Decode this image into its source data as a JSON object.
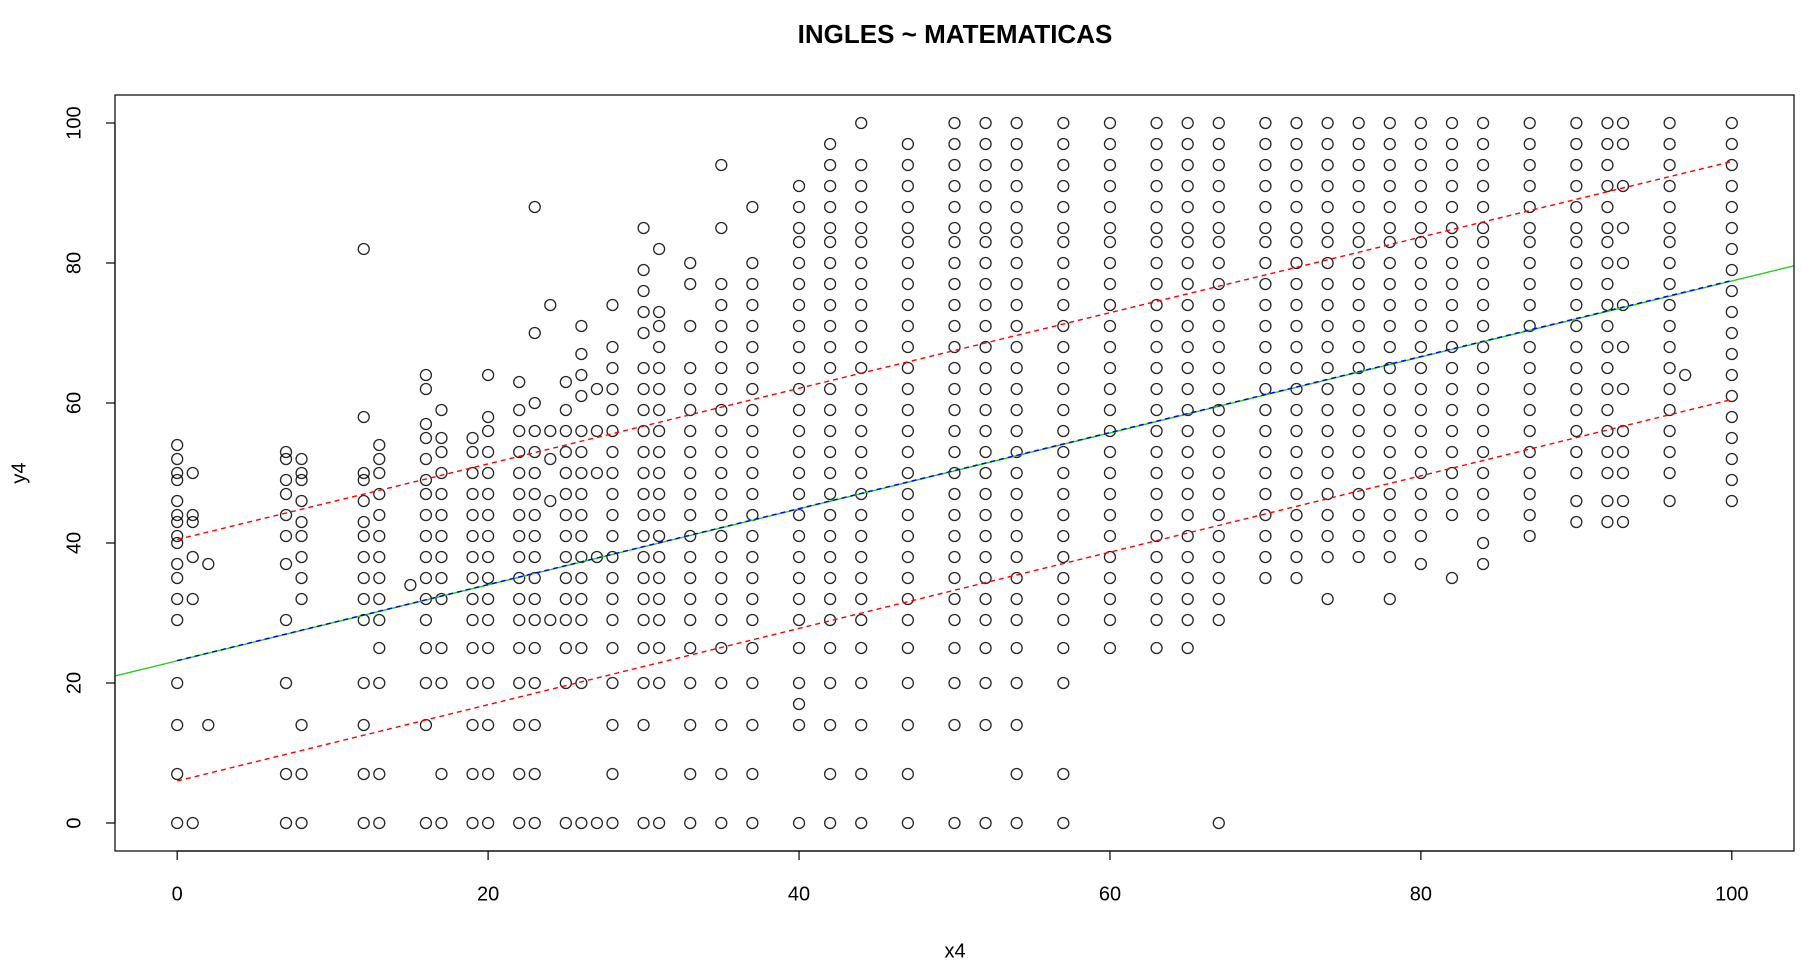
{
  "chart_data": {
    "type": "scatter",
    "title": "INGLES ~ MATEMATICAS",
    "x_label": "x4",
    "y_label": "y4",
    "xlim": [
      -4,
      104
    ],
    "ylim": [
      -4,
      104
    ],
    "xticks": [
      0,
      20,
      40,
      60,
      80,
      100
    ],
    "yticks": [
      0,
      20,
      40,
      60,
      80,
      100
    ],
    "point_color": "#000000",
    "points": [
      {
        "x": 0,
        "y": [
          0,
          7,
          14,
          20,
          29,
          32,
          35,
          37,
          40,
          41,
          43,
          44,
          46,
          49,
          50,
          52,
          54
        ]
      },
      {
        "x": 1,
        "y": [
          0,
          32,
          38,
          43,
          44,
          50
        ]
      },
      {
        "x": 2,
        "y": [
          14,
          37
        ]
      },
      {
        "x": 7,
        "y": [
          0,
          7,
          20,
          29,
          37,
          41,
          44,
          47,
          49,
          52,
          53
        ]
      },
      {
        "x": 8,
        "y": [
          0,
          7,
          14,
          32,
          35,
          38,
          41,
          43,
          46,
          49,
          50,
          52
        ]
      },
      {
        "x": 12,
        "y": [
          0,
          7,
          14,
          20,
          29,
          32,
          35,
          38,
          41,
          43,
          46,
          49,
          50,
          58,
          82
        ]
      },
      {
        "x": 13,
        "y": [
          0,
          7,
          20,
          25,
          29,
          32,
          35,
          38,
          41,
          44,
          47,
          50,
          52,
          54
        ]
      },
      {
        "x": 15,
        "y": [
          34
        ]
      },
      {
        "x": 16,
        "y": [
          0,
          14,
          20,
          25,
          29,
          32,
          35,
          38,
          41,
          44,
          47,
          49,
          52,
          55,
          57,
          62,
          64
        ]
      },
      {
        "x": 17,
        "y": [
          0,
          7,
          20,
          25,
          32,
          35,
          38,
          41,
          44,
          47,
          50,
          53,
          55,
          59
        ]
      },
      {
        "x": 19,
        "y": [
          0,
          7,
          14,
          20,
          25,
          29,
          32,
          35,
          38,
          41,
          44,
          47,
          50,
          53,
          55
        ]
      },
      {
        "x": 20,
        "y": [
          0,
          7,
          14,
          20,
          25,
          29,
          32,
          35,
          38,
          41,
          44,
          47,
          50,
          53,
          56,
          58,
          64
        ]
      },
      {
        "x": 22,
        "y": [
          0,
          7,
          14,
          20,
          25,
          29,
          32,
          35,
          38,
          41,
          44,
          47,
          50,
          53,
          56,
          59,
          63
        ]
      },
      {
        "x": 23,
        "y": [
          0,
          7,
          14,
          20,
          25,
          29,
          32,
          35,
          38,
          41,
          44,
          47,
          50,
          53,
          56,
          60,
          70,
          88
        ]
      },
      {
        "x": 24,
        "y": [
          29,
          46,
          52,
          56,
          74
        ]
      },
      {
        "x": 25,
        "y": [
          0,
          20,
          25,
          29,
          32,
          35,
          38,
          41,
          44,
          47,
          50,
          53,
          56,
          59,
          63
        ]
      },
      {
        "x": 26,
        "y": [
          0,
          20,
          25,
          29,
          32,
          35,
          38,
          41,
          44,
          47,
          50,
          53,
          56,
          61,
          64,
          67,
          71
        ]
      },
      {
        "x": 27,
        "y": [
          0,
          38,
          50,
          56,
          62
        ]
      },
      {
        "x": 28,
        "y": [
          0,
          7,
          14,
          20,
          25,
          29,
          32,
          35,
          38,
          41,
          44,
          47,
          50,
          53,
          56,
          59,
          62,
          65,
          68,
          74
        ]
      },
      {
        "x": 30,
        "y": [
          0,
          14,
          20,
          25,
          29,
          32,
          35,
          38,
          41,
          44,
          47,
          50,
          53,
          56,
          59,
          62,
          65,
          70,
          73,
          76,
          79,
          85
        ]
      },
      {
        "x": 31,
        "y": [
          0,
          20,
          25,
          29,
          32,
          35,
          38,
          41,
          44,
          47,
          50,
          53,
          56,
          59,
          62,
          65,
          68,
          71,
          73,
          82
        ]
      },
      {
        "x": 33,
        "y": [
          0,
          7,
          14,
          20,
          25,
          29,
          32,
          35,
          38,
          41,
          44,
          47,
          50,
          53,
          56,
          59,
          62,
          65,
          71,
          77,
          80
        ]
      },
      {
        "x": 35,
        "y": [
          0,
          7,
          14,
          20,
          25,
          29,
          32,
          35,
          38,
          41,
          44,
          47,
          50,
          53,
          56,
          59,
          62,
          65,
          68,
          71,
          74,
          77,
          85,
          94
        ]
      },
      {
        "x": 37,
        "y": [
          0,
          7,
          14,
          20,
          25,
          29,
          32,
          35,
          38,
          41,
          44,
          47,
          50,
          53,
          56,
          59,
          62,
          65,
          68,
          71,
          74,
          77,
          80,
          88
        ]
      },
      {
        "x": 40,
        "y": [
          0,
          14,
          17,
          20,
          25,
          29,
          32,
          35,
          38,
          41,
          44,
          47,
          50,
          53,
          56,
          59,
          62,
          65,
          68,
          71,
          74,
          77,
          80,
          83,
          85,
          88,
          91
        ]
      },
      {
        "x": 42,
        "y": [
          0,
          7,
          14,
          20,
          25,
          29,
          32,
          35,
          38,
          41,
          44,
          47,
          50,
          53,
          56,
          59,
          62,
          65,
          68,
          71,
          74,
          77,
          80,
          83,
          85,
          88,
          91,
          94,
          97
        ]
      },
      {
        "x": 44,
        "y": [
          0,
          7,
          14,
          20,
          25,
          29,
          32,
          35,
          38,
          41,
          44,
          47,
          50,
          53,
          56,
          59,
          62,
          65,
          68,
          71,
          74,
          77,
          80,
          83,
          85,
          88,
          91,
          94,
          100
        ]
      },
      {
        "x": 47,
        "y": [
          0,
          7,
          14,
          20,
          25,
          29,
          32,
          35,
          38,
          41,
          44,
          47,
          50,
          53,
          56,
          59,
          62,
          65,
          68,
          71,
          74,
          77,
          80,
          83,
          85,
          88,
          91,
          94,
          97
        ]
      },
      {
        "x": 50,
        "y": [
          0,
          14,
          20,
          25,
          29,
          32,
          35,
          38,
          41,
          44,
          47,
          50,
          53,
          56,
          59,
          62,
          65,
          68,
          71,
          74,
          77,
          80,
          83,
          85,
          88,
          91,
          94,
          97,
          100
        ]
      },
      {
        "x": 52,
        "y": [
          0,
          14,
          20,
          25,
          29,
          32,
          35,
          38,
          41,
          44,
          47,
          50,
          53,
          56,
          59,
          62,
          65,
          68,
          71,
          74,
          77,
          80,
          83,
          85,
          88,
          91,
          94,
          97,
          100
        ]
      },
      {
        "x": 54,
        "y": [
          0,
          7,
          14,
          20,
          25,
          29,
          32,
          35,
          38,
          41,
          44,
          47,
          50,
          53,
          56,
          59,
          62,
          65,
          68,
          71,
          74,
          77,
          80,
          83,
          85,
          88,
          91,
          94,
          97,
          100
        ]
      },
      {
        "x": 57,
        "y": [
          0,
          7,
          20,
          25,
          29,
          32,
          35,
          38,
          41,
          44,
          47,
          50,
          53,
          56,
          59,
          62,
          65,
          68,
          71,
          74,
          77,
          80,
          83,
          85,
          88,
          91,
          94,
          97,
          100
        ]
      },
      {
        "x": 60,
        "y": [
          25,
          29,
          32,
          35,
          38,
          41,
          44,
          47,
          50,
          53,
          56,
          59,
          62,
          65,
          68,
          71,
          74,
          77,
          80,
          83,
          85,
          88,
          91,
          94,
          97,
          100
        ]
      },
      {
        "x": 63,
        "y": [
          25,
          29,
          32,
          35,
          38,
          41,
          44,
          47,
          50,
          53,
          56,
          59,
          62,
          65,
          68,
          71,
          74,
          77,
          80,
          83,
          85,
          88,
          91,
          94,
          97,
          100
        ]
      },
      {
        "x": 65,
        "y": [
          25,
          29,
          32,
          35,
          38,
          41,
          44,
          47,
          50,
          53,
          56,
          59,
          62,
          65,
          68,
          71,
          74,
          77,
          80,
          83,
          85,
          88,
          91,
          94,
          97,
          100
        ]
      },
      {
        "x": 67,
        "y": [
          0,
          29,
          32,
          35,
          38,
          41,
          44,
          47,
          50,
          53,
          56,
          59,
          62,
          65,
          68,
          71,
          74,
          77,
          80,
          83,
          85,
          88,
          91,
          94,
          97,
          100
        ]
      },
      {
        "x": 70,
        "y": [
          35,
          38,
          41,
          44,
          47,
          50,
          53,
          56,
          59,
          62,
          65,
          68,
          71,
          74,
          77,
          80,
          83,
          85,
          88,
          91,
          94,
          97,
          100
        ]
      },
      {
        "x": 72,
        "y": [
          35,
          38,
          41,
          44,
          47,
          50,
          53,
          56,
          59,
          62,
          65,
          68,
          71,
          74,
          77,
          80,
          83,
          85,
          88,
          91,
          94,
          97,
          100
        ]
      },
      {
        "x": 74,
        "y": [
          32,
          38,
          41,
          44,
          47,
          50,
          53,
          56,
          59,
          62,
          65,
          68,
          71,
          74,
          77,
          80,
          83,
          85,
          88,
          91,
          94,
          97,
          100
        ]
      },
      {
        "x": 76,
        "y": [
          38,
          41,
          44,
          47,
          50,
          53,
          56,
          59,
          62,
          65,
          68,
          71,
          74,
          77,
          80,
          83,
          85,
          88,
          91,
          94,
          97,
          100
        ]
      },
      {
        "x": 78,
        "y": [
          32,
          38,
          41,
          44,
          47,
          50,
          53,
          56,
          59,
          62,
          65,
          68,
          71,
          74,
          77,
          80,
          83,
          85,
          88,
          91,
          94,
          97,
          100
        ]
      },
      {
        "x": 80,
        "y": [
          37,
          41,
          44,
          47,
          50,
          53,
          56,
          59,
          62,
          65,
          68,
          71,
          74,
          77,
          80,
          83,
          85,
          88,
          91,
          94,
          97,
          100
        ]
      },
      {
        "x": 82,
        "y": [
          35,
          44,
          47,
          50,
          53,
          56,
          59,
          62,
          65,
          68,
          71,
          74,
          77,
          80,
          83,
          85,
          88,
          91,
          94,
          97,
          100
        ]
      },
      {
        "x": 84,
        "y": [
          37,
          40,
          44,
          47,
          50,
          53,
          56,
          59,
          62,
          65,
          68,
          71,
          74,
          77,
          80,
          83,
          85,
          88,
          91,
          94,
          97,
          100
        ]
      },
      {
        "x": 87,
        "y": [
          41,
          44,
          47,
          50,
          53,
          56,
          59,
          62,
          65,
          68,
          71,
          74,
          77,
          80,
          83,
          85,
          88,
          91,
          94,
          97,
          100
        ]
      },
      {
        "x": 90,
        "y": [
          43,
          46,
          50,
          53,
          56,
          59,
          62,
          65,
          68,
          71,
          74,
          77,
          80,
          83,
          85,
          88,
          91,
          94,
          97,
          100
        ]
      },
      {
        "x": 92,
        "y": [
          43,
          46,
          50,
          53,
          56,
          59,
          62,
          65,
          68,
          71,
          74,
          77,
          80,
          83,
          85,
          88,
          91,
          94,
          97,
          100
        ]
      },
      {
        "x": 93,
        "y": [
          43,
          46,
          50,
          53,
          56,
          62,
          68,
          74,
          80,
          85,
          91,
          97,
          100
        ]
      },
      {
        "x": 96,
        "y": [
          46,
          50,
          53,
          56,
          59,
          62,
          65,
          68,
          71,
          74,
          77,
          80,
          83,
          85,
          88,
          91,
          94,
          97,
          100
        ]
      },
      {
        "x": 97,
        "y": [
          64
        ]
      },
      {
        "x": 100,
        "y": [
          46,
          49,
          52,
          55,
          58,
          61,
          64,
          67,
          70,
          73,
          76,
          79,
          82,
          85,
          88,
          91,
          94,
          97,
          100
        ]
      }
    ],
    "lines": [
      {
        "color": "#22cc22",
        "dashed": false,
        "x": [
          -4,
          104
        ],
        "y": [
          21.0,
          79.6
        ]
      },
      {
        "color": "#0000ff",
        "dashed": true,
        "x": [
          0,
          100
        ],
        "y": [
          23.2,
          77.5
        ]
      },
      {
        "color": "#ff0000",
        "dashed": true,
        "x": [
          0,
          100
        ],
        "y": [
          6.0,
          60.5
        ]
      },
      {
        "color": "#ff0000",
        "dashed": true,
        "x": [
          0,
          100
        ],
        "y": [
          40.5,
          94.5
        ]
      }
    ]
  }
}
